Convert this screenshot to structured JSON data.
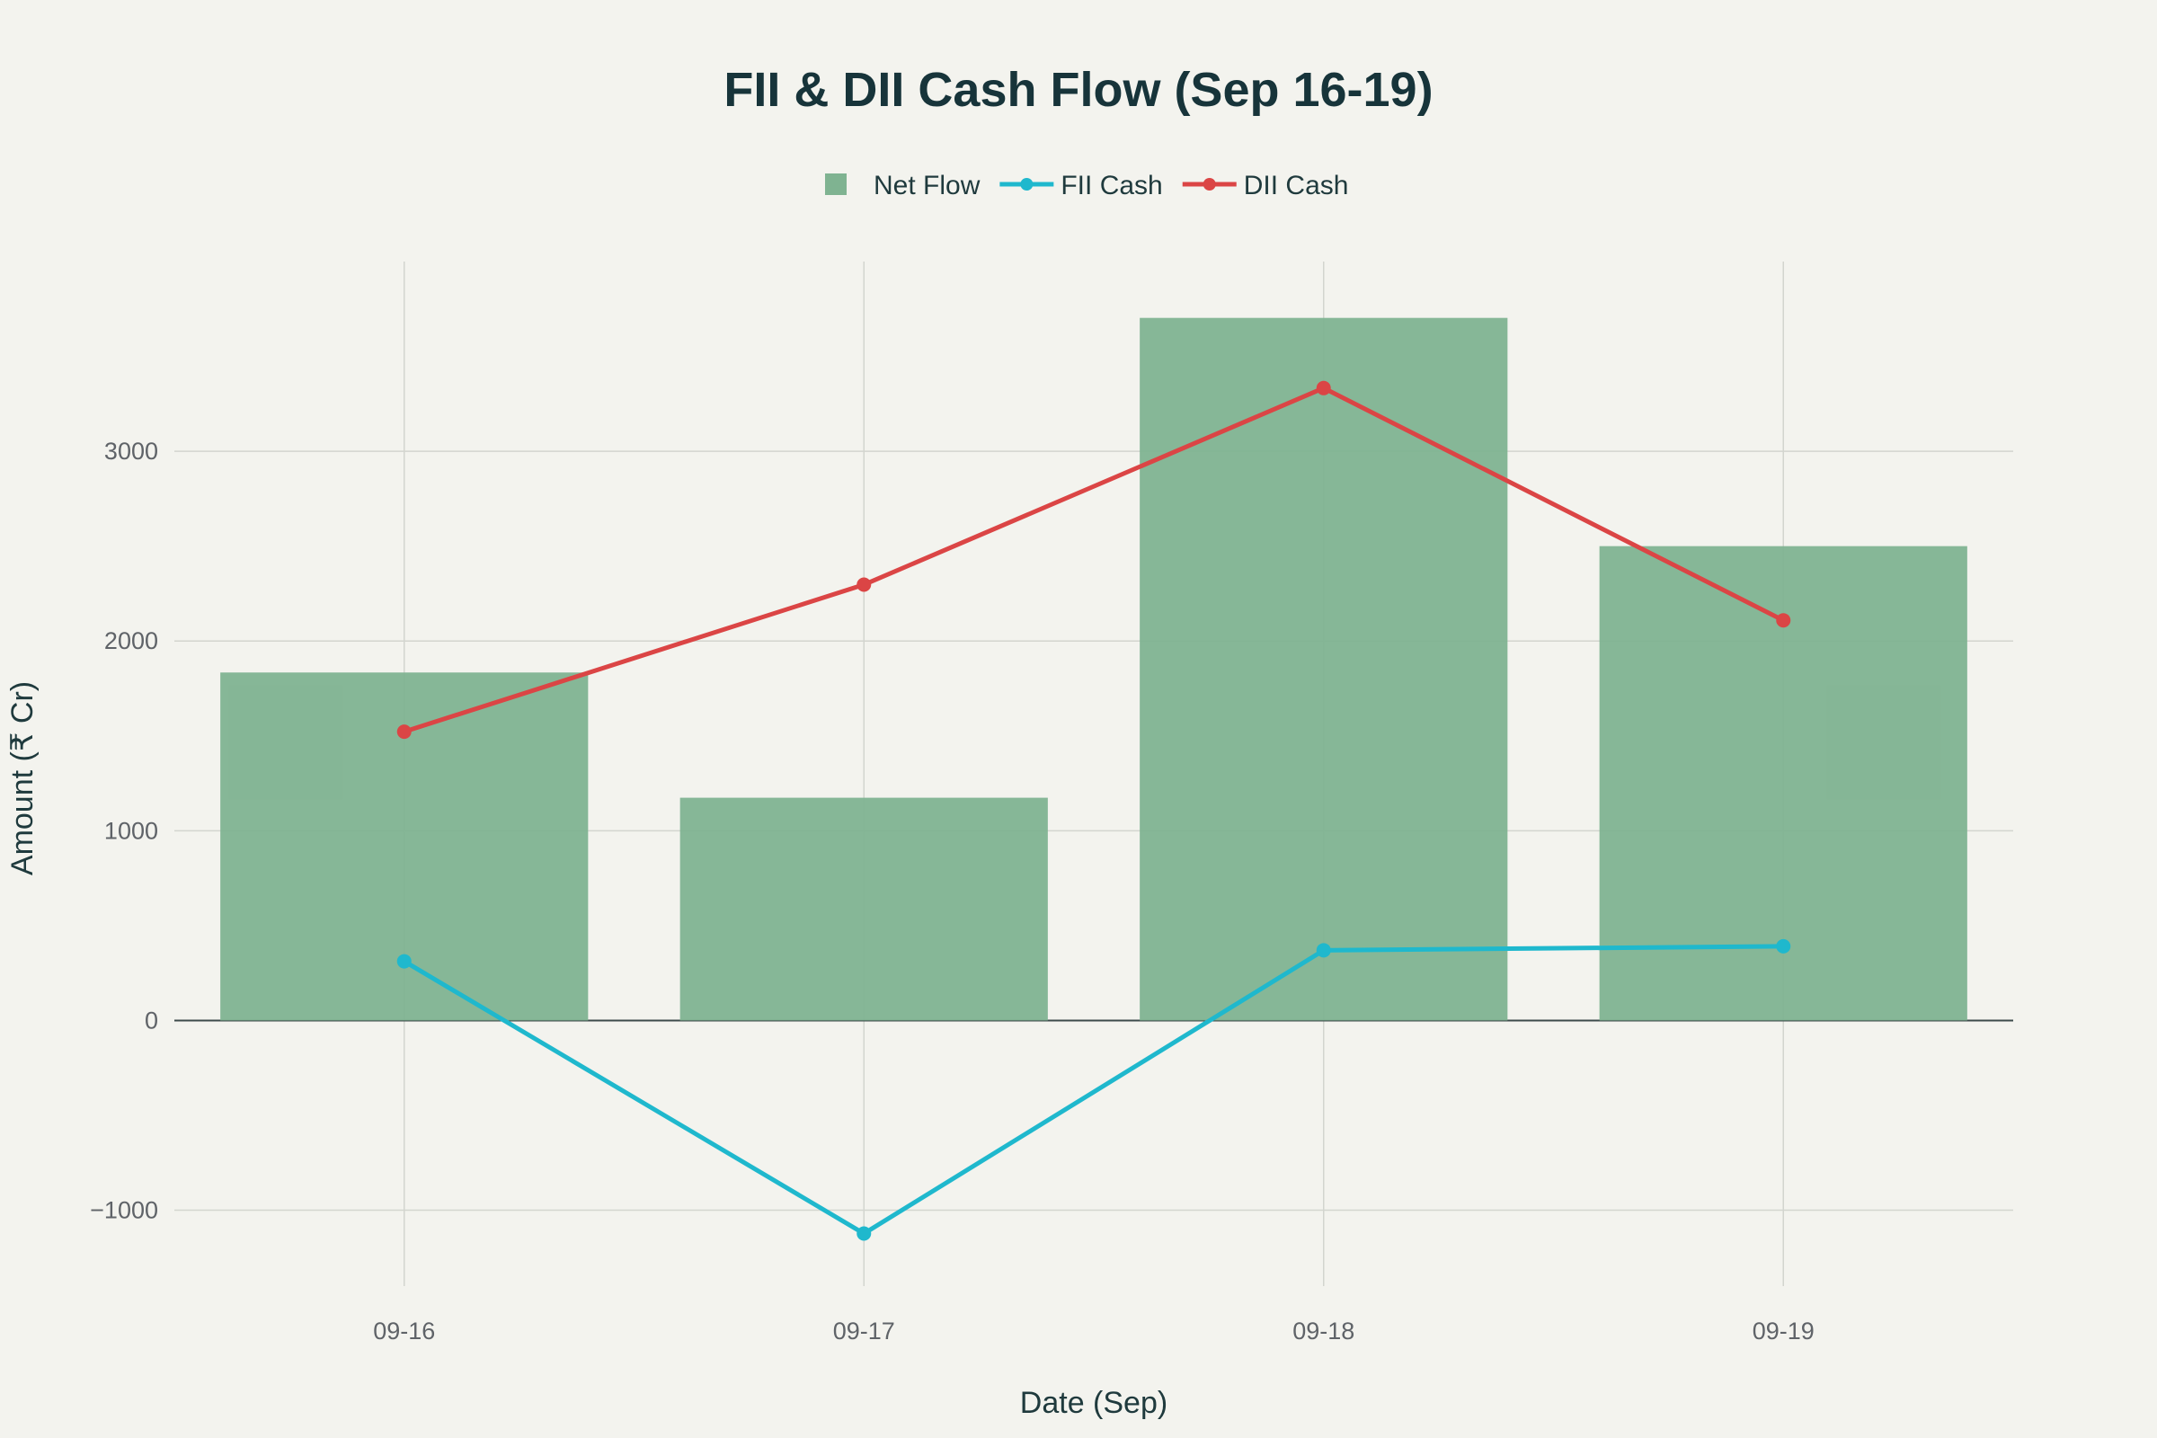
{
  "chart_data": {
    "type": "bar+line",
    "title": "FII & DII Cash Flow (Sep 16-19)",
    "xlabel": "Date (Sep)",
    "ylabel": "Amount (₹ Cr)",
    "categories": [
      "09-16",
      "09-17",
      "09-18",
      "09-19"
    ],
    "ylim": [
      -1400,
      4000
    ],
    "yticks": [
      -1000,
      0,
      1000,
      2000,
      3000
    ],
    "ytick_labels": [
      "−1000",
      "0",
      "1000",
      "2000",
      "3000"
    ],
    "grid": true,
    "legend_placement": "top-center",
    "series": [
      {
        "name": "Net Flow",
        "type": "bar",
        "color": "#7fb391",
        "values": [
          1834,
          1174,
          3703,
          2500
        ]
      },
      {
        "name": "FII Cash",
        "type": "line",
        "color": "#1fb8cd",
        "values": [
          312,
          -1123,
          370,
          391
        ]
      },
      {
        "name": "DII Cash",
        "type": "line",
        "color": "#db4545",
        "values": [
          1522,
          2297,
          3333,
          2109
        ]
      }
    ]
  }
}
